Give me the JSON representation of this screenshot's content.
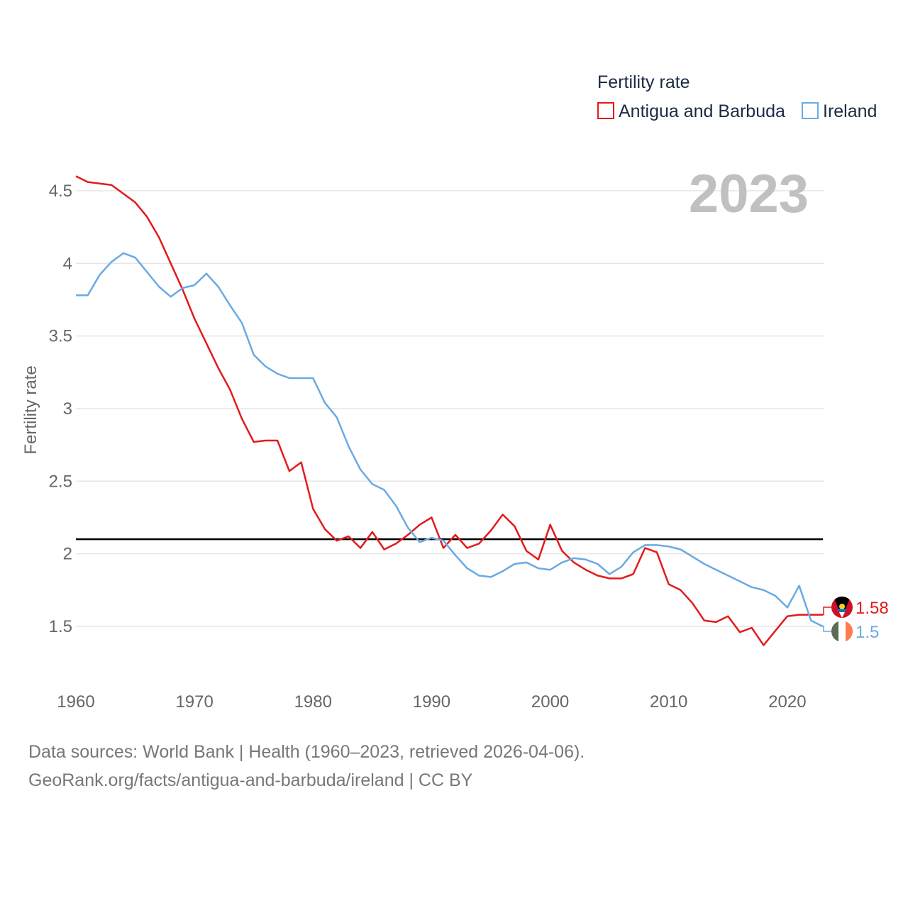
{
  "chart_data": {
    "type": "line",
    "legend_title": "Fertility rate",
    "ylabel": "Fertility rate",
    "year_label": "2023",
    "xlim": [
      1960,
      2023
    ],
    "ylim": [
      1.12,
      4.67
    ],
    "x_ticks": [
      1960,
      1970,
      1980,
      1990,
      2000,
      2010,
      2020
    ],
    "y_ticks": [
      1.5,
      2,
      2.5,
      3,
      3.5,
      4,
      4.5
    ],
    "reference_line": 2.1,
    "x": [
      1960,
      1961,
      1962,
      1963,
      1964,
      1965,
      1966,
      1967,
      1968,
      1969,
      1970,
      1971,
      1972,
      1973,
      1974,
      1975,
      1976,
      1977,
      1978,
      1979,
      1980,
      1981,
      1982,
      1983,
      1984,
      1985,
      1986,
      1987,
      1988,
      1989,
      1990,
      1991,
      1992,
      1993,
      1994,
      1995,
      1996,
      1997,
      1998,
      1999,
      2000,
      2001,
      2002,
      2003,
      2004,
      2005,
      2006,
      2007,
      2008,
      2009,
      2010,
      2011,
      2012,
      2013,
      2014,
      2015,
      2016,
      2017,
      2018,
      2019,
      2020,
      2021,
      2022,
      2023
    ],
    "series": [
      {
        "name": "Antigua and Barbuda",
        "color": "#e31a1c",
        "end_label": "1.58",
        "values": [
          4.6,
          4.56,
          4.55,
          4.54,
          4.48,
          4.42,
          4.32,
          4.18,
          4.0,
          3.82,
          3.62,
          3.45,
          3.28,
          3.13,
          2.93,
          2.77,
          2.78,
          2.78,
          2.57,
          2.63,
          2.31,
          2.17,
          2.09,
          2.12,
          2.04,
          2.15,
          2.03,
          2.07,
          2.13,
          2.2,
          2.25,
          2.04,
          2.13,
          2.04,
          2.07,
          2.16,
          2.27,
          2.19,
          2.02,
          1.96,
          2.2,
          2.02,
          1.94,
          1.89,
          1.85,
          1.83,
          1.83,
          1.86,
          2.04,
          2.01,
          1.79,
          1.75,
          1.66,
          1.54,
          1.53,
          1.57,
          1.46,
          1.49,
          1.37,
          1.47,
          1.57,
          1.58,
          1.58,
          1.58
        ]
      },
      {
        "name": "Ireland",
        "color": "#6aaae4",
        "end_label": "1.5",
        "values": [
          3.78,
          3.78,
          3.92,
          4.01,
          4.07,
          4.04,
          3.94,
          3.84,
          3.77,
          3.83,
          3.85,
          3.93,
          3.84,
          3.71,
          3.59,
          3.37,
          3.29,
          3.24,
          3.21,
          3.21,
          3.21,
          3.04,
          2.94,
          2.74,
          2.58,
          2.48,
          2.44,
          2.33,
          2.18,
          2.08,
          2.11,
          2.09,
          1.99,
          1.9,
          1.85,
          1.84,
          1.88,
          1.93,
          1.94,
          1.9,
          1.89,
          1.94,
          1.97,
          1.96,
          1.93,
          1.86,
          1.91,
          2.01,
          2.06,
          2.06,
          2.05,
          2.03,
          1.98,
          1.93,
          1.89,
          1.85,
          1.81,
          1.77,
          1.75,
          1.71,
          1.63,
          1.78,
          1.54,
          1.5
        ]
      }
    ]
  },
  "source": {
    "line1": "Data sources: World Bank | Health (1960–2023, retrieved 2026-04-06).",
    "line2": "GeoRank.org/facts/antigua-and-barbuda/ireland | CC BY"
  }
}
